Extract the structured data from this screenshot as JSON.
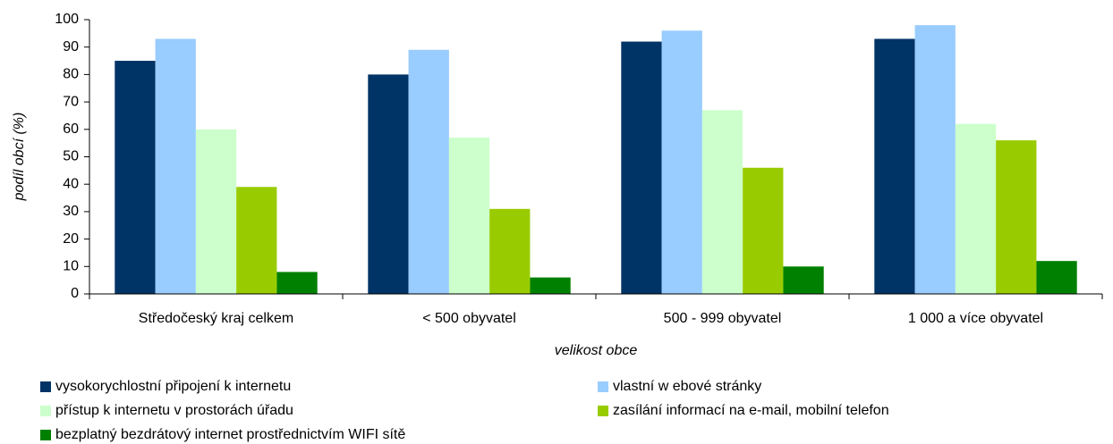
{
  "chart_data": {
    "type": "bar",
    "ylabel": "podíl obcí (%)",
    "xlabel": "velikost obce",
    "categories": [
      "Středočeský kraj celkem",
      "< 500 obyvatel",
      "500 - 999 obyvatel",
      "1 000 a více obyvatel"
    ],
    "series": [
      {
        "name": "vysokorychlostní připojení k internetu",
        "color": "#003366",
        "values": [
          85,
          80,
          92,
          93
        ]
      },
      {
        "name": "vlastní w ebové stránky",
        "color": "#99ccff",
        "values": [
          93,
          89,
          96,
          98
        ]
      },
      {
        "name": "přístup k internetu v prostorách úřadu",
        "color": "#ccffcc",
        "values": [
          60,
          57,
          67,
          62
        ]
      },
      {
        "name": "zasílání informací na e-mail, mobilní telefon",
        "color": "#99cc00",
        "values": [
          39,
          31,
          46,
          56
        ]
      },
      {
        "name": "bezplatný bezdrátový internet prostřednictvím WIFI sítě",
        "color": "#008000",
        "values": [
          8,
          6,
          10,
          12
        ]
      }
    ],
    "ylim": [
      0,
      100
    ],
    "yticks": [
      0,
      10,
      20,
      30,
      40,
      50,
      60,
      70,
      80,
      90,
      100
    ],
    "grid": false
  }
}
